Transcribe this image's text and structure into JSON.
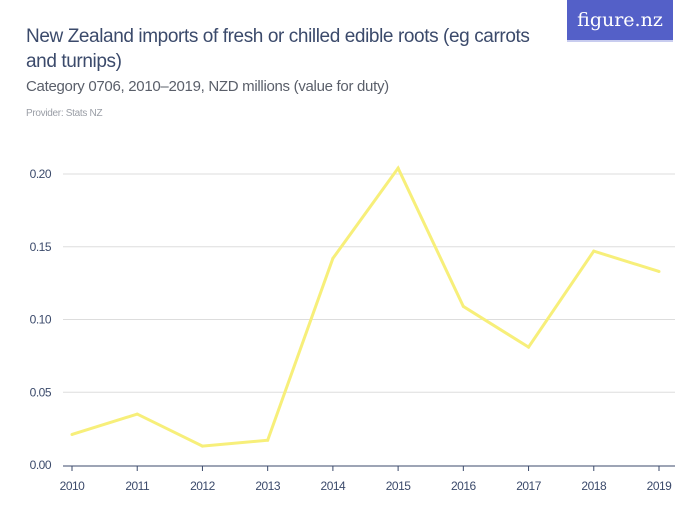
{
  "header": {
    "title": "New Zealand imports of fresh or chilled edible roots (eg carrots and turnips)",
    "subtitle": "Category 0706, 2010–2019, NZD millions (value for duty)",
    "provider": "Provider: Stats NZ",
    "logo_text": "figure.nz"
  },
  "colors": {
    "line": "#f7ef7a",
    "grid": "#dddddd",
    "axis": "#3b4a6b",
    "brand": "#5460c8"
  },
  "chart_data": {
    "type": "line",
    "title": "New Zealand imports of fresh or chilled edible roots (eg carrots and turnips)",
    "categories": [
      "2010",
      "2011",
      "2012",
      "2013",
      "2014",
      "2015",
      "2016",
      "2017",
      "2018",
      "2019"
    ],
    "values": [
      0.021,
      0.035,
      0.013,
      0.017,
      0.142,
      0.204,
      0.109,
      0.081,
      0.147,
      0.133
    ],
    "ylim": [
      0,
      0.2
    ],
    "yticks": [
      "0.00",
      "0.05",
      "0.10",
      "0.15",
      "0.20"
    ],
    "grid": true,
    "xlabel": "",
    "ylabel": ""
  }
}
